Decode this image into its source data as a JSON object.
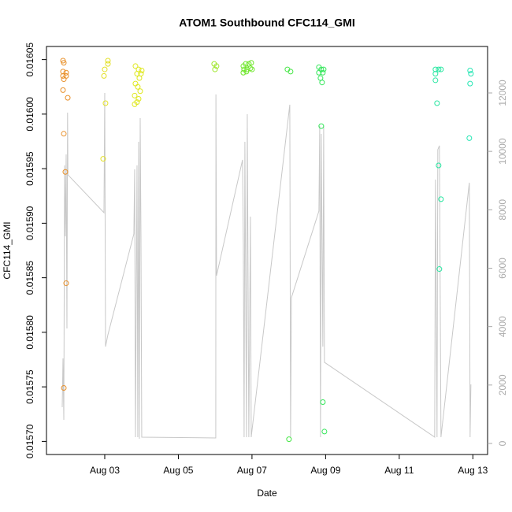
{
  "chart_data": {
    "type": "scatter",
    "title": "ATOM1 Southbound CFC114_GMI",
    "xlabel": "Date",
    "ylabel": "CFC114_GMI",
    "xlim": [
      1.417,
      13.4
    ],
    "xticks": [
      {
        "value": 3,
        "label": "Aug 03"
      },
      {
        "value": 5,
        "label": "Aug 05"
      },
      {
        "value": 7,
        "label": "Aug 07"
      },
      {
        "value": 9,
        "label": "Aug 09"
      },
      {
        "value": 11,
        "label": "Aug 11"
      },
      {
        "value": 13,
        "label": "Aug 13"
      }
    ],
    "ylim": [
      0.015688,
      0.016062
    ],
    "yticks": [
      {
        "value": 0.0157,
        "label": "0.01570"
      },
      {
        "value": 0.01575,
        "label": "0.01575"
      },
      {
        "value": 0.0158,
        "label": "0.01580"
      },
      {
        "value": 0.01585,
        "label": "0.01585"
      },
      {
        "value": 0.0159,
        "label": "0.01590"
      },
      {
        "value": 0.01595,
        "label": "0.01595"
      },
      {
        "value": 0.016,
        "label": "0.01600"
      },
      {
        "value": 0.01605,
        "label": "0.01605"
      }
    ],
    "y2lim": [
      -378,
      13591
    ],
    "y2ticks": [
      0,
      2000,
      4000,
      6000,
      8000,
      10000,
      12000
    ],
    "series": [
      {
        "type": "line",
        "axis": "y2",
        "color": "#c8c8c8",
        "x": [
          1.845,
          1.866,
          1.888,
          1.909,
          1.93,
          1.952,
          1.973,
          1.99,
          2.0,
          2.979,
          3.0,
          3.021,
          3.086,
          3.791,
          3.813,
          3.834,
          3.877,
          3.898,
          3.92,
          3.941,
          3.963,
          3.984,
          4.005,
          6.016,
          6.02,
          6.037,
          6.743,
          6.765,
          6.786,
          6.807,
          6.85,
          6.872,
          6.914,
          6.957,
          6.979,
          8.027,
          8.048,
          8.07,
          8.818,
          8.84,
          8.861,
          8.882,
          8.925,
          8.947,
          8.968,
          11.963,
          11.984,
          12.027,
          12.048,
          12.091,
          12.134,
          12.904,
          12.925,
          12.947
        ],
        "values": [
          1240,
          2913,
          809,
          9520,
          7093,
          9898,
          3938,
          11327,
          9197,
          7902,
          12000,
          3317,
          3722,
          7174,
          9385,
          216,
          9520,
          216,
          10329,
          162,
          11138,
          7093,
          216,
          189,
          11948,
          5745,
          9709,
          6823,
          216,
          10329,
          216,
          11273,
          216,
          7767,
          216,
          11597,
          216,
          4990,
          7956,
          10868,
          216,
          10599,
          3317,
          10868,
          2778,
          216,
          9035,
          216,
          10060,
          10194,
          216,
          8927,
          216,
          2023
        ]
      },
      {
        "color": "#e8902a",
        "x": [
          1.866,
          1.888,
          1.866,
          1.952,
          1.866,
          1.952,
          1.888,
          1.866,
          1.995,
          1.888,
          1.93,
          1.952,
          1.888
        ],
        "values": [
          0.016049,
          0.016047,
          0.016039,
          0.016038,
          0.016035,
          0.016035,
          0.016032,
          0.016022,
          0.016015,
          0.015982,
          0.015947,
          0.015845,
          0.015749
        ]
      },
      {
        "color": "#e3e026",
        "x": [
          3.086,
          3.086,
          3.0,
          2.979,
          3.021,
          2.957
        ],
        "values": [
          0.016049,
          0.016046,
          0.016041,
          0.016035,
          0.01601,
          0.015959
        ]
      },
      {
        "color": "#dfe81e",
        "x": [
          3.834,
          3.92,
          4.005,
          3.877,
          3.984,
          3.941,
          3.834,
          3.898,
          3.963,
          3.813,
          3.92,
          3.877,
          3.813
        ],
        "values": [
          0.016044,
          0.016041,
          0.01604,
          0.016037,
          0.016037,
          0.016033,
          0.016028,
          0.016025,
          0.016021,
          0.016017,
          0.016014,
          0.016011,
          0.016009
        ]
      },
      {
        "color": "#9ee62a",
        "x": [
          5.973,
          6.037,
          5.995
        ],
        "values": [
          0.016046,
          0.016044,
          0.016041
        ]
      },
      {
        "color": "#6ee62a",
        "x": [
          6.765,
          6.829,
          6.914,
          6.979,
          6.786,
          6.872,
          6.957,
          6.765,
          6.85,
          7.0
        ],
        "values": [
          0.016044,
          0.016046,
          0.016046,
          0.016047,
          0.016041,
          0.016041,
          0.016042,
          0.016038,
          0.016039,
          0.016041
        ]
      },
      {
        "color": "#46e646",
        "x": [
          7.963,
          8.048,
          8.005
        ],
        "values": [
          0.016041,
          0.016039,
          0.015702
        ]
      },
      {
        "color": "#34e65a",
        "x": [
          8.818,
          8.882,
          8.947,
          8.818,
          8.925,
          8.861,
          8.904,
          8.882,
          8.925,
          8.968
        ],
        "values": [
          0.016043,
          0.016041,
          0.016041,
          0.016038,
          0.016038,
          0.016033,
          0.016029,
          0.015989,
          0.015736,
          0.015709
        ]
      },
      {
        "color": "#26e6a0",
        "x": [
          11.984,
          12.07,
          12.134,
          11.984,
          11.984,
          12.027,
          12.07,
          12.134,
          12.091
        ],
        "values": [
          0.016041,
          0.016041,
          0.016041,
          0.016037,
          0.016031,
          0.01601,
          0.015953,
          0.015922,
          0.015858
        ]
      },
      {
        "color": "#26e6b4",
        "x": [
          12.925,
          12.947,
          12.925,
          12.904
        ],
        "values": [
          0.01604,
          0.016037,
          0.016028,
          0.015978
        ]
      }
    ]
  }
}
